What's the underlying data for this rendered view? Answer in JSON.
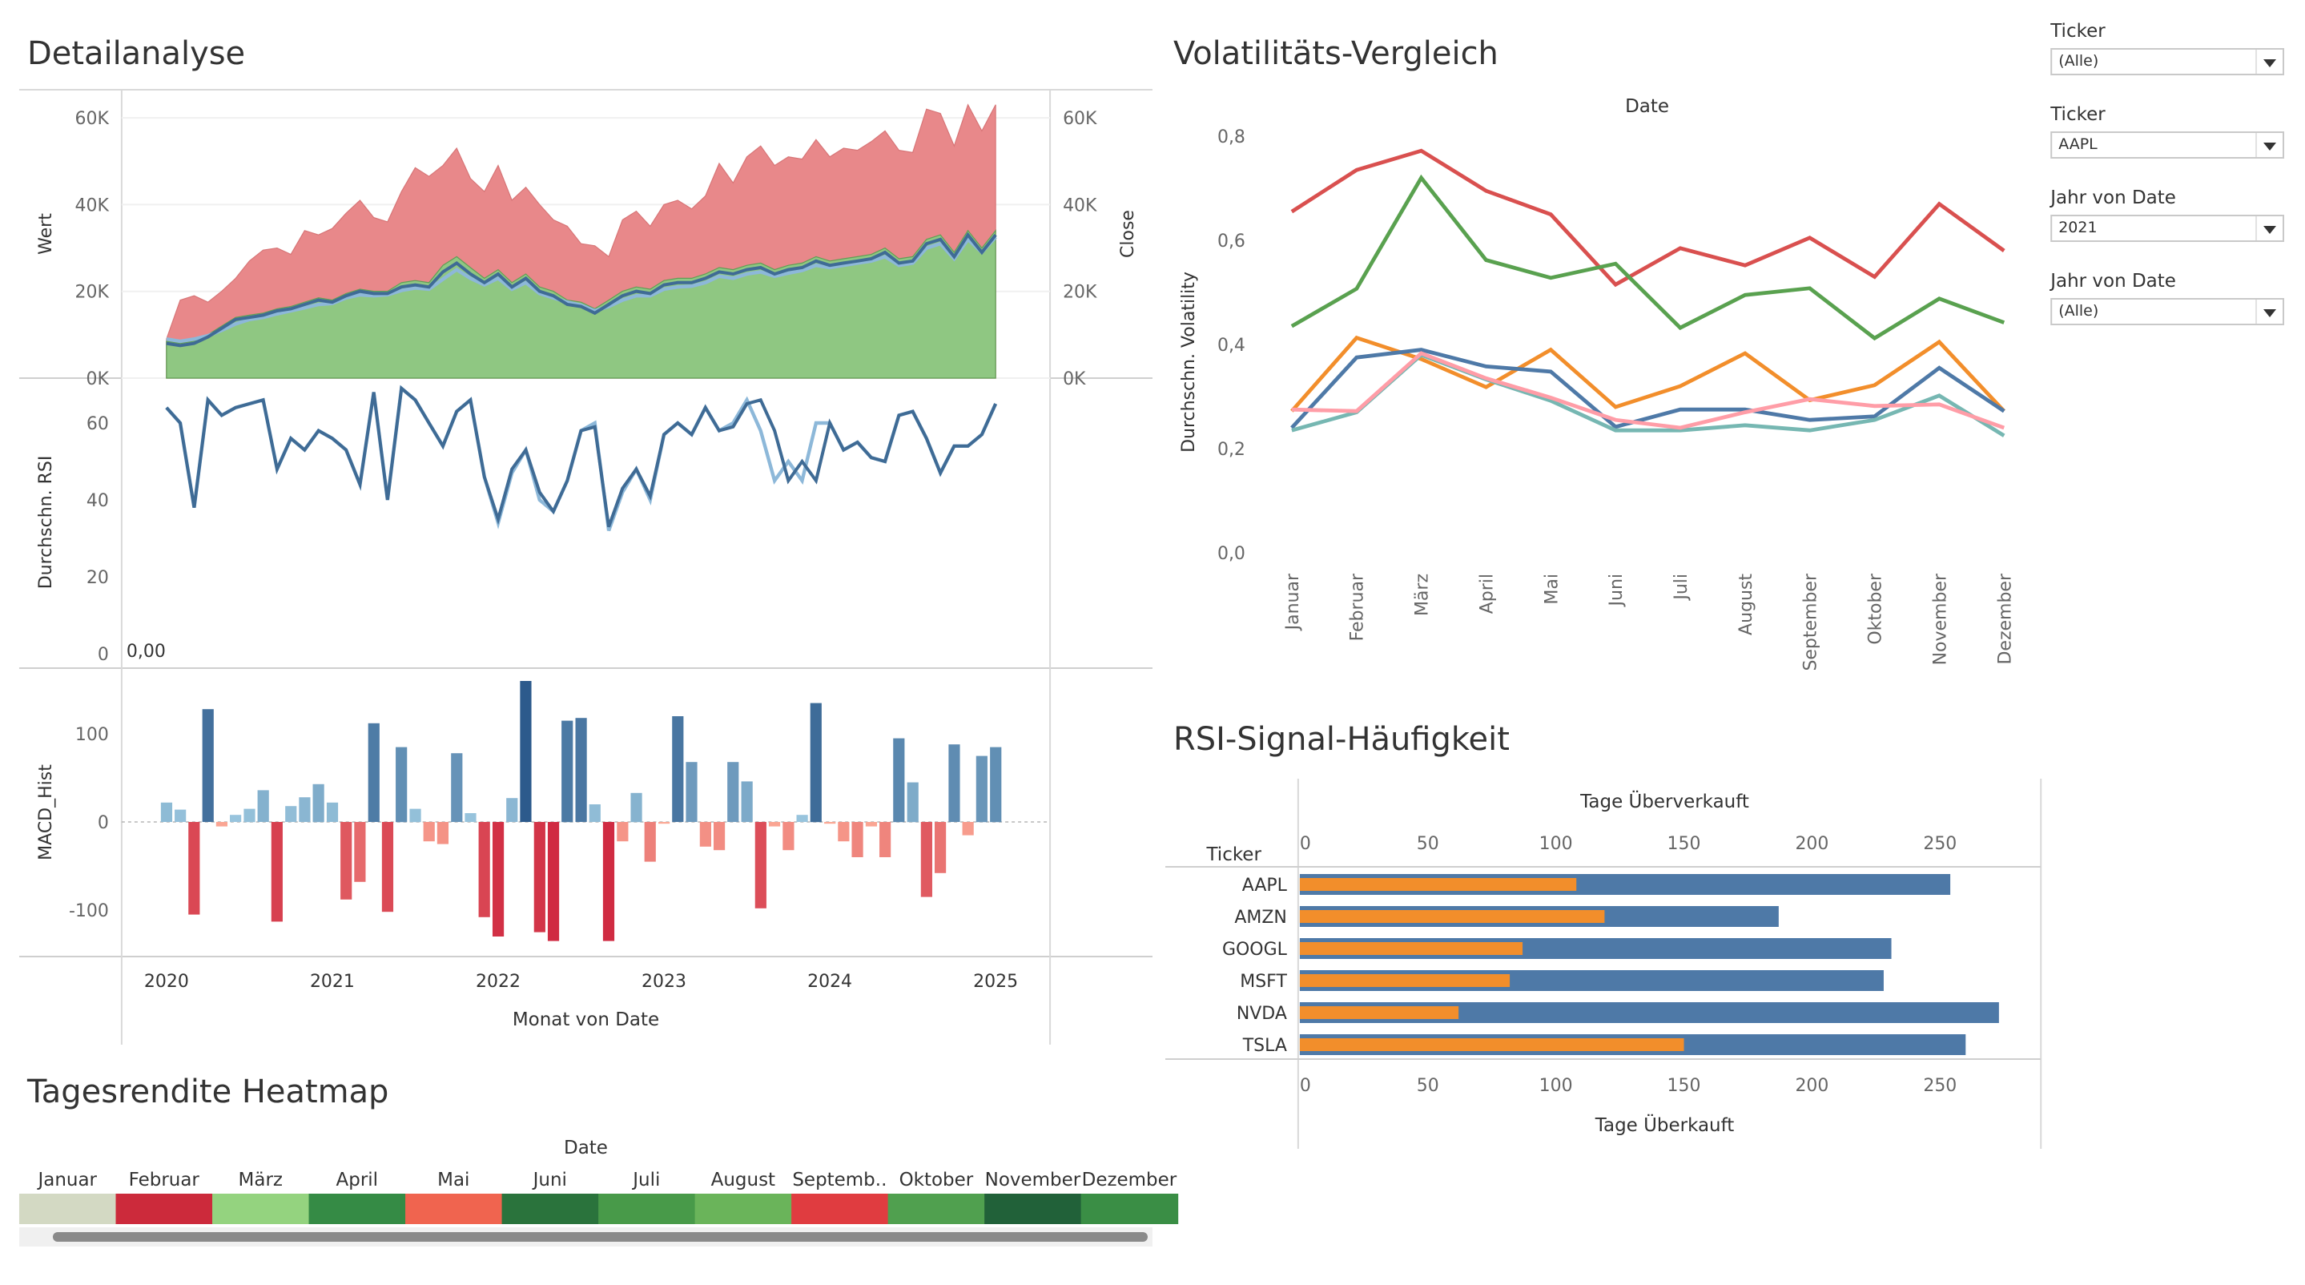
{
  "titles": {
    "detail": "Detailanalyse",
    "volatility": "Volatilitäts-Vergleich",
    "rsi_signal": "RSI-Signal-Häufigkeit",
    "heatmap": "Tagesrendite Heatmap"
  },
  "filters": [
    {
      "label": "Ticker",
      "value": "(Alle)"
    },
    {
      "label": "Ticker",
      "value": "AAPL"
    },
    {
      "label": "Jahr von Date",
      "value": "2021"
    },
    {
      "label": "Jahr von Date",
      "value": "(Alle)"
    }
  ],
  "colors": {
    "red_area": "#e8888a",
    "green_area": "#8fc782",
    "blue_dark": "#3f6b95",
    "blue_light": "#8db8d9",
    "macd_pos": "#5b8db8",
    "macd_neg": "#d9404b",
    "orange": "#f28e2b",
    "bar_blue": "#4e79a7"
  },
  "chart_data": [
    {
      "type": "area",
      "name": "detail-price",
      "xlabel": "Monat von Date",
      "ylabel": "Wert",
      "ylabel_right": "Close",
      "ylim": [
        0,
        65000
      ],
      "yticks": [
        "0K",
        "20K",
        "40K",
        "60K"
      ],
      "xticks": [
        "2020",
        "2021",
        "2022",
        "2023",
        "2024",
        "2025"
      ],
      "x_start": "2020-01",
      "x_end": "2024-12",
      "series": [
        {
          "name": "upper",
          "values": [
            9000,
            18000,
            19000,
            17500,
            20000,
            23000,
            27000,
            29500,
            30000,
            28500,
            34000,
            33000,
            34500,
            38000,
            41000,
            37000,
            36000,
            43000,
            48500,
            46500,
            49000,
            53000,
            46000,
            43000,
            49000,
            41000,
            44000,
            40000,
            36500,
            35000,
            31000,
            30500,
            28000,
            36500,
            38500,
            35000,
            40000,
            41000,
            39000,
            42000,
            49500,
            45000,
            51000,
            53500,
            49000,
            51000,
            50500,
            55000,
            51000,
            53000,
            52500,
            54500,
            57000,
            52500,
            52000,
            62000,
            61000,
            53500,
            63000,
            57000,
            63000
          ]
        },
        {
          "name": "middle",
          "values": [
            8500,
            8000,
            8500,
            10000,
            12000,
            14000,
            14500,
            15000,
            16000,
            16500,
            17500,
            18500,
            18000,
            19500,
            20500,
            20000,
            20000,
            22000,
            22500,
            22000,
            26000,
            28000,
            25500,
            23000,
            25000,
            22000,
            24000,
            21000,
            20000,
            18000,
            17500,
            16000,
            18000,
            20000,
            21000,
            20500,
            22500,
            23000,
            23000,
            24000,
            25500,
            25000,
            26000,
            26500,
            25000,
            26000,
            26500,
            28000,
            27000,
            27500,
            28000,
            28500,
            30000,
            27500,
            28000,
            32000,
            33000,
            29000,
            34000,
            30000,
            34000
          ]
        },
        {
          "name": "close-dark",
          "values": [
            8000,
            7500,
            8000,
            9500,
            11500,
            13500,
            14000,
            14500,
            15500,
            16000,
            17000,
            18000,
            17500,
            19000,
            20000,
            19500,
            19500,
            21000,
            21500,
            21000,
            24500,
            26500,
            24000,
            22000,
            24000,
            21000,
            23000,
            20000,
            19000,
            17000,
            16500,
            15000,
            17000,
            19000,
            20000,
            19500,
            21500,
            22000,
            22000,
            23000,
            24500,
            24000,
            25000,
            25500,
            24000,
            25000,
            25500,
            27000,
            26000,
            26500,
            27000,
            27500,
            29000,
            26500,
            27000,
            31000,
            32000,
            28000,
            33000,
            29000,
            33000
          ]
        },
        {
          "name": "close-light",
          "values": [
            9000,
            8500,
            9000,
            9800,
            11000,
            12500,
            13500,
            14000,
            14800,
            15500,
            16200,
            17000,
            17200,
            18500,
            19200,
            19000,
            19200,
            20200,
            20800,
            20500,
            22800,
            25000,
            23000,
            21500,
            23000,
            20500,
            22000,
            19500,
            18500,
            17500,
            16800,
            15500,
            16500,
            18000,
            19000,
            19000,
            20500,
            21000,
            21200,
            22000,
            23500,
            23000,
            24000,
            24500,
            23500,
            24200,
            24800,
            26000,
            25500,
            26000,
            26500,
            27000,
            28000,
            26000,
            26500,
            30000,
            31000,
            27500,
            32000,
            29000,
            32500
          ]
        }
      ]
    },
    {
      "type": "line",
      "name": "detail-rsi",
      "ylabel": "Durchschn. RSI",
      "ylim": [
        0,
        70
      ],
      "yticks": [
        "0",
        "20",
        "40",
        "60"
      ],
      "annotation": "0,00",
      "series": [
        {
          "name": "rsi-light",
          "values": [
            64,
            60,
            38,
            66,
            62,
            64,
            65,
            66,
            48,
            56,
            53,
            58,
            56,
            53,
            44,
            68,
            40,
            69,
            66,
            60,
            54,
            63,
            66,
            46,
            34,
            47,
            53,
            40,
            37,
            45,
            58,
            60,
            32,
            42,
            48,
            40,
            57,
            60,
            57,
            64,
            58,
            60,
            66,
            58,
            45,
            50,
            45,
            60,
            60,
            53,
            55,
            51,
            50,
            62,
            63,
            56,
            47,
            54,
            54,
            57,
            65
          ]
        },
        {
          "name": "rsi-dark",
          "values": [
            64,
            60,
            38,
            66,
            62,
            64,
            65,
            66,
            48,
            56,
            53,
            58,
            56,
            53,
            44,
            68,
            40,
            69,
            66,
            60,
            54,
            63,
            66,
            46,
            35,
            48,
            53,
            42,
            37,
            45,
            58,
            59,
            33,
            43,
            48,
            41,
            57,
            60,
            57,
            64,
            58,
            59,
            65,
            66,
            58,
            45,
            50,
            45,
            60,
            53,
            55,
            51,
            50,
            62,
            63,
            56,
            47,
            54,
            54,
            57,
            65
          ]
        }
      ]
    },
    {
      "type": "bar",
      "name": "detail-macd",
      "ylabel": "MACD_Hist",
      "ylim": [
        -140,
        170
      ],
      "yticks": [
        "-100",
        "0",
        "100"
      ],
      "values": [
        22,
        14,
        -105,
        128,
        -5,
        8,
        15,
        36,
        -113,
        18,
        28,
        43,
        22,
        -88,
        -68,
        112,
        -102,
        85,
        15,
        -22,
        -25,
        78,
        10,
        -108,
        -130,
        27,
        160,
        -125,
        -135,
        115,
        118,
        20,
        -135,
        -22,
        33,
        -45,
        -2,
        120,
        68,
        -28,
        -32,
        68,
        46,
        -98,
        -5,
        -32,
        8,
        135,
        -2,
        -22,
        -40,
        -5,
        -40,
        95,
        45,
        -85,
        -58,
        88,
        -15,
        75,
        85
      ]
    },
    {
      "type": "line",
      "name": "volatility",
      "title": "Volatilitäts-Vergleich",
      "xlabel": "Date",
      "ylabel": "Durchschn. Volatility",
      "ylim": [
        0,
        0.85
      ],
      "yticks": [
        "0,0",
        "0,2",
        "0,4",
        "0,6",
        "0,8"
      ],
      "categories": [
        "Januar",
        "Februar",
        "März",
        "April",
        "Mai",
        "Juni",
        "Juli",
        "August",
        "September",
        "Oktober",
        "November",
        "Dezember"
      ],
      "series": [
        {
          "values": [
            0.655,
            0.735,
            0.772,
            0.695,
            0.65,
            0.515,
            0.585,
            0.552,
            0.605,
            0.53,
            0.67,
            0.58
          ]
        },
        {
          "values": [
            0.435,
            0.507,
            0.72,
            0.562,
            0.528,
            0.555,
            0.432,
            0.495,
            0.508,
            0.412,
            0.488,
            0.442
          ]
        },
        {
          "values": [
            0.272,
            0.413,
            0.372,
            0.318,
            0.39,
            0.28,
            0.32,
            0.383,
            0.293,
            0.322,
            0.405,
            0.272
          ]
        },
        {
          "values": [
            0.24,
            0.375,
            0.39,
            0.358,
            0.348,
            0.242,
            0.275,
            0.275,
            0.255,
            0.262,
            0.355,
            0.272
          ]
        },
        {
          "values": [
            0.235,
            0.27,
            0.38,
            0.333,
            0.292,
            0.235,
            0.235,
            0.245,
            0.235,
            0.255,
            0.302,
            0.225
          ]
        },
        {
          "values": [
            0.275,
            0.272,
            0.383,
            0.335,
            0.298,
            0.255,
            0.24,
            0.27,
            0.295,
            0.282,
            0.285,
            0.24
          ]
        }
      ]
    },
    {
      "type": "bar",
      "name": "rsi-signal",
      "title": "RSI-Signal-Häufigkeit",
      "xlabel_top": "Tage Überverkauft",
      "xlabel_bottom": "Tage Überkauft",
      "categories_label": "Ticker",
      "xlim": [
        0,
        280
      ],
      "xticks": [
        "0",
        "50",
        "100",
        "150",
        "200",
        "250"
      ],
      "categories": [
        "AAPL",
        "AMZN",
        "GOOGL",
        "MSFT",
        "NVDA",
        "TSLA"
      ],
      "series": [
        {
          "values": [
            254,
            187,
            231,
            228,
            273,
            260
          ]
        },
        {
          "values": [
            108,
            119,
            87,
            82,
            62,
            150
          ]
        }
      ]
    },
    {
      "type": "heatmap",
      "name": "heatmap",
      "title": "Tagesrendite Heatmap",
      "xlabel": "Date",
      "categories": [
        "Januar",
        "Februar",
        "März",
        "April",
        "Mai",
        "Juni",
        "Juli",
        "August",
        "Septemb..",
        "Oktober",
        "November",
        "Dezember"
      ],
      "cell_colors": [
        "#d3d9c3",
        "#cc2a3b",
        "#94d37f",
        "#358b45",
        "#f0644f",
        "#2a733c",
        "#489a49",
        "#6ab45a",
        "#e03c40",
        "#50a04f",
        "#216139",
        "#3a8e45"
      ]
    }
  ]
}
